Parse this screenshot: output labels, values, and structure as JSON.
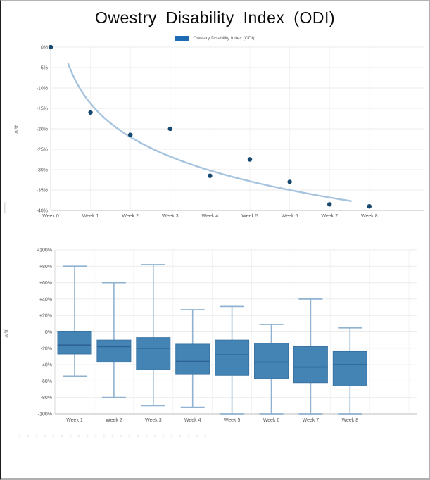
{
  "title": "Owestry Disability Index (ODI)",
  "legend": {
    "label": "Owestry Disability Index (ODI)",
    "swatch_color": "#1d6cb3"
  },
  "artifacts": {
    "bracket": "["
  },
  "colors": {
    "point": "#17486f",
    "trend_line": "#a7c4de",
    "box_fill": "#4484b5",
    "box_border": "#3a74a3",
    "median_line": "#2d6292",
    "whisker": "#8fb2d1",
    "axis_text": "#595959",
    "gridline": "#ebebeb",
    "vgridline": "#f3f3f3",
    "axis_line": "#c9c9c9",
    "left_axis_line": "#d9d9d9"
  },
  "chart_data": [
    {
      "type": "scatter",
      "name": "Owestry Disability Index (ODI)",
      "categories": [
        "Week 0",
        "Week 1",
        "Week 2",
        "Week 3",
        "Week 4",
        "Week 5",
        "Week 6",
        "Week 7",
        "Week 8"
      ],
      "values": [
        0,
        -16,
        -21.5,
        -20,
        -31.5,
        -27.5,
        -33,
        -38.5,
        -39
      ],
      "ylabel": "Δ %",
      "ylim": [
        -40,
        0
      ],
      "yticks": [
        "0%",
        "-5%",
        "-10%",
        "-15%",
        "-20%",
        "-25%",
        "-30%",
        "-35%",
        "-40%"
      ],
      "grid": true,
      "legend_position": "top-center",
      "trend": {
        "type": "logarithmic",
        "formula": "y = a + b*ln(x)",
        "a": -13.8,
        "b": -11.83,
        "x_start": 0.44,
        "x_end": 7.55
      }
    },
    {
      "type": "boxplot",
      "categories": [
        "Week 1",
        "Week 2",
        "Week 3",
        "Week 4",
        "Week 5",
        "Week 6",
        "Week 7",
        "Week 8"
      ],
      "series": [
        {
          "category": "Week 1",
          "min": -54,
          "q1": -27,
          "median": -16,
          "q3": 0,
          "max": 80
        },
        {
          "category": "Week 2",
          "min": -80,
          "q1": -37,
          "median": -18,
          "q3": -10,
          "max": 60
        },
        {
          "category": "Week 3",
          "min": -90,
          "q1": -46,
          "median": -20,
          "q3": -7,
          "max": 82
        },
        {
          "category": "Week 4",
          "min": -92,
          "q1": -52,
          "median": -36,
          "q3": -15,
          "max": 27
        },
        {
          "category": "Week 5",
          "min": -100,
          "q1": -53,
          "median": -28,
          "q3": -10,
          "max": 31
        },
        {
          "category": "Week 6",
          "min": -100,
          "q1": -57,
          "median": -37,
          "q3": -14,
          "max": 9
        },
        {
          "category": "Week 7",
          "min": -100,
          "q1": -62,
          "median": -43,
          "q3": -18,
          "max": 40
        },
        {
          "category": "Week 8",
          "min": -100,
          "q1": -66,
          "median": -40,
          "q3": -24,
          "max": 5
        }
      ],
      "ylabel": "Δ %",
      "ylim": [
        -100,
        100
      ],
      "yticks": [
        "+100%",
        "+80%",
        "+60%",
        "+40%",
        "+20%",
        "0%",
        "-20%",
        "-40%",
        "-60%",
        "-80%",
        "-100%"
      ],
      "grid": true
    }
  ]
}
